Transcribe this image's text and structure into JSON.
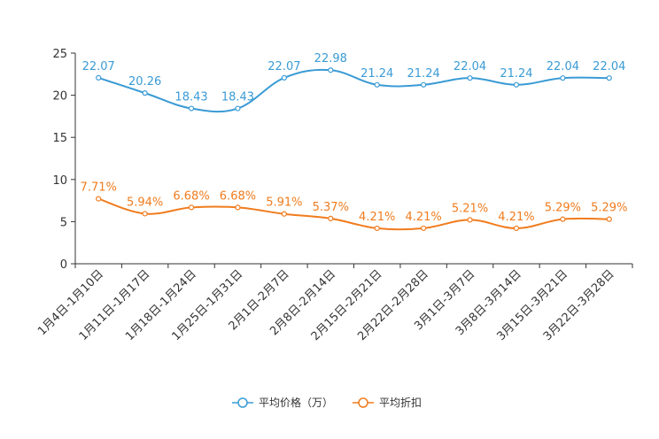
{
  "chart_data": {
    "type": "line",
    "title": "",
    "xlabel": "",
    "ylabel": "",
    "ylim": [
      0,
      25
    ],
    "yticks": [
      0,
      5,
      10,
      15,
      20,
      25
    ],
    "grid": false,
    "legend_position": "bottom-center",
    "categories": [
      "1月4日-1月10日",
      "1月11日-1月17日",
      "1月18日-1月24日",
      "1月25日-1月31日",
      "2月1日-2月7日",
      "2月8日-2月14日",
      "2月15日-2月21日",
      "2月22日-2月28日",
      "3月1日-3月7日",
      "3月8日-3月14日",
      "3月15日-3月21日",
      "3月22日-3月28日"
    ],
    "series": [
      {
        "name": "平均价格（万）",
        "color": "#3a9bd5",
        "values": [
          22.07,
          20.26,
          18.43,
          18.43,
          22.07,
          22.98,
          21.24,
          21.24,
          22.04,
          21.24,
          22.04,
          22.04
        ],
        "labels": [
          "22.07",
          "20.26",
          "18.43",
          "18.43",
          "22.07",
          "22.98",
          "21.24",
          "21.24",
          "22.04",
          "21.24",
          "22.04",
          "22.04"
        ]
      },
      {
        "name": "平均折扣",
        "color": "#f07c1e",
        "values": [
          7.71,
          5.94,
          6.68,
          6.68,
          5.91,
          5.37,
          4.21,
          4.21,
          5.21,
          4.21,
          5.29,
          5.29
        ],
        "labels": [
          "7.71%",
          "5.94%",
          "6.68%",
          "6.68%",
          "5.91%",
          "5.37%",
          "4.21%",
          "4.21%",
          "5.21%",
          "4.21%",
          "5.29%",
          "5.29%"
        ]
      }
    ]
  }
}
